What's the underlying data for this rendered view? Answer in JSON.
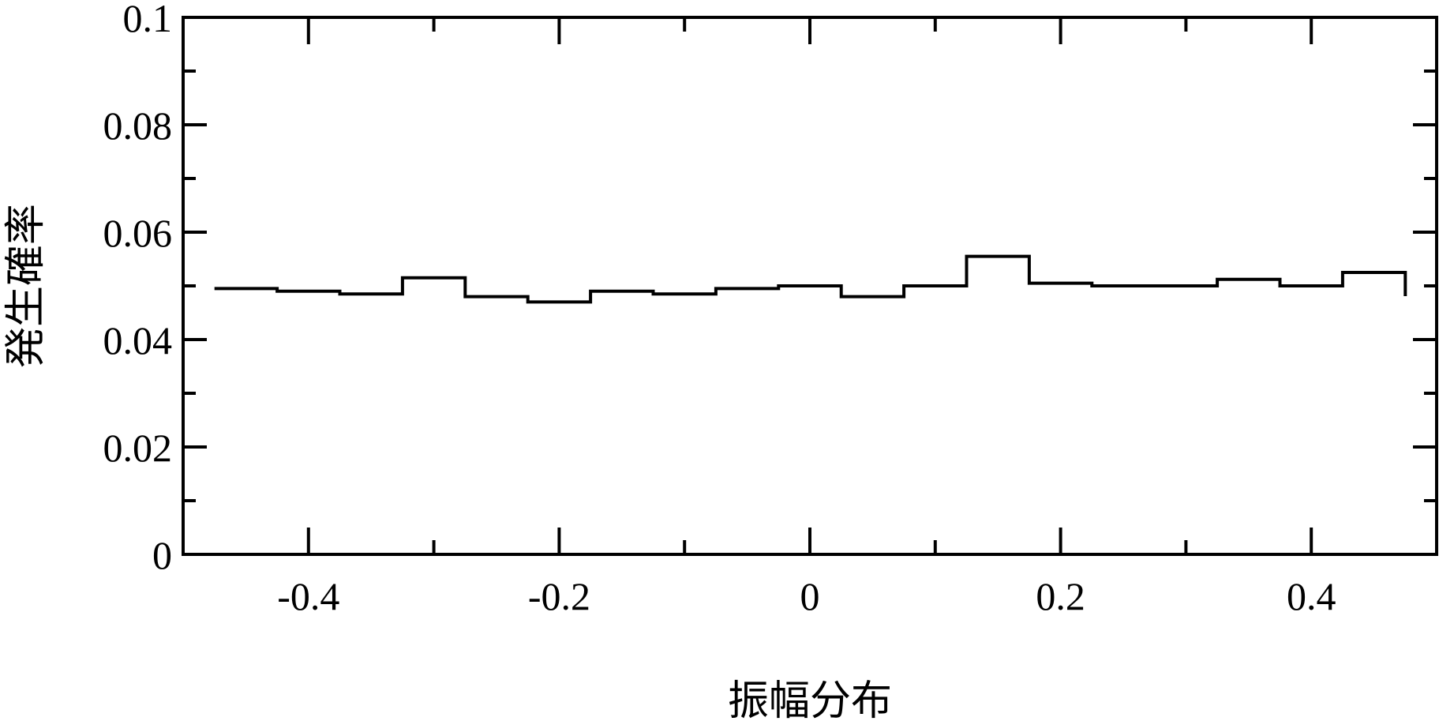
{
  "chart_data": {
    "type": "bar",
    "style": "step-histogram",
    "title": "",
    "xlabel": "振幅分布",
    "ylabel": "発生確率",
    "xlim": [
      -0.5,
      0.5
    ],
    "ylim": [
      0,
      0.1
    ],
    "grid": false,
    "bin_edges": [
      -0.475,
      -0.425,
      -0.375,
      -0.325,
      -0.275,
      -0.225,
      -0.175,
      -0.125,
      -0.075,
      -0.025,
      0.025,
      0.075,
      0.125,
      0.175,
      0.225,
      0.275,
      0.325,
      0.375,
      0.425,
      0.475
    ],
    "values": [
      0.0495,
      0.049,
      0.0485,
      0.0515,
      0.048,
      0.047,
      0.049,
      0.0485,
      0.0495,
      0.05,
      0.048,
      0.05,
      0.0555,
      0.0505,
      0.05,
      0.05,
      0.0512,
      0.05,
      0.0525
    ],
    "x_ticks": [
      -0.4,
      -0.2,
      0,
      0.2,
      0.4
    ],
    "x_tick_labels": [
      "-0.4",
      "-0.2",
      "0",
      "0.2",
      "0.4"
    ],
    "y_ticks": [
      0,
      0.02,
      0.04,
      0.06,
      0.08,
      0.1
    ],
    "y_tick_labels": [
      "0",
      "0.02",
      "0.04",
      "0.06",
      "0.08",
      "0.1"
    ],
    "line_color": "#000000"
  }
}
